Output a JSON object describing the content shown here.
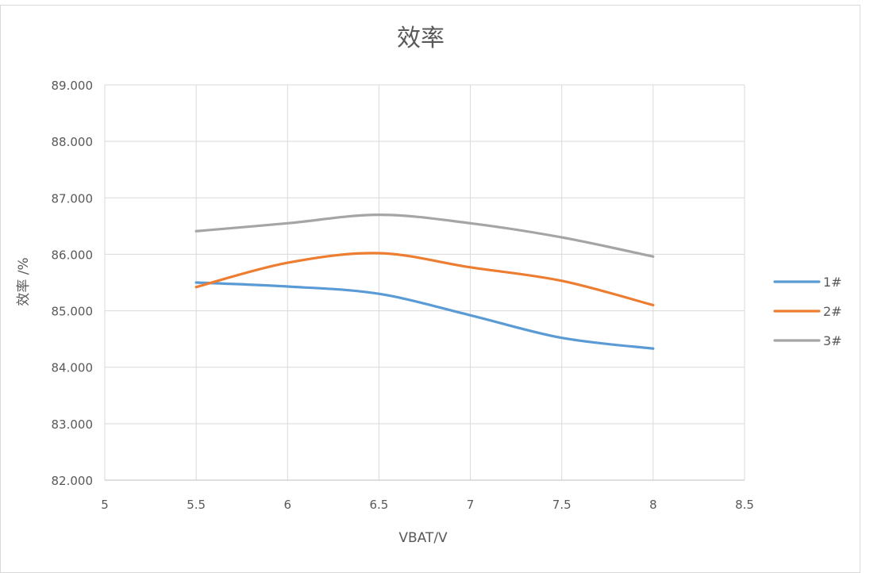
{
  "chart_data": {
    "type": "line",
    "title": "效率",
    "xlabel": "VBAT/V",
    "ylabel": "效率 /%",
    "xlim": [
      5,
      8.5
    ],
    "ylim": [
      82,
      89
    ],
    "x_ticks": [
      "5",
      "5.5",
      "6",
      "6.5",
      "7",
      "7.5",
      "8",
      "8.5"
    ],
    "y_ticks": [
      "82.000",
      "83.000",
      "84.000",
      "85.000",
      "86.000",
      "87.000",
      "88.000",
      "89.000"
    ],
    "grid": true,
    "smooth": true,
    "legend_position": "right",
    "x": [
      5.5,
      6,
      6.5,
      7,
      7.5,
      8
    ],
    "series": [
      {
        "name": "1#",
        "color": "#5B9BD5",
        "values": [
          85.5,
          85.43,
          85.3,
          84.92,
          84.52,
          84.33
        ]
      },
      {
        "name": "2#",
        "color": "#ED7D31",
        "values": [
          85.42,
          85.85,
          86.02,
          85.77,
          85.53,
          85.1
        ]
      },
      {
        "name": "3#",
        "color": "#A5A5A5",
        "values": [
          86.41,
          86.55,
          86.7,
          86.55,
          86.3,
          85.96
        ]
      }
    ]
  }
}
